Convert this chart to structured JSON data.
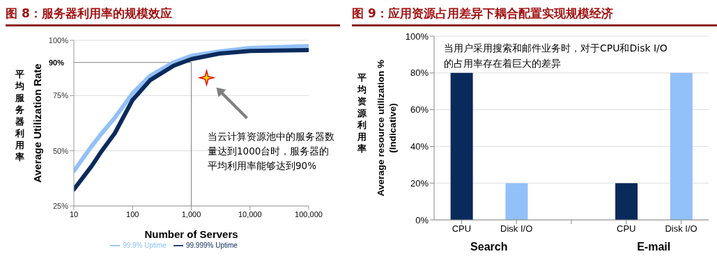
{
  "chart_data": [
    {
      "type": "line",
      "title": "图 8：服务器利用率的规模效应",
      "xlabel": "Number of Servers",
      "ylabel": "Average Utilization Rate",
      "annotations": [
        "平均服务器利用率",
        "当云计算资源池中的服务器数量达到1000台时，服务器的平均利用率能够达到90%"
      ],
      "x": [
        10,
        20,
        30,
        50,
        100,
        200,
        500,
        1000,
        3000,
        10000,
        100000
      ],
      "series": [
        {
          "name": "99.9% Uptime",
          "color": "#92c0f8",
          "values": [
            40.8,
            52,
            58,
            65,
            76,
            84,
            90,
            93,
            95,
            96.5,
            97.4
          ]
        },
        {
          "name": "99.999% Uptime",
          "color": "#0b2a5c",
          "values": [
            32.5,
            43,
            50,
            58,
            73,
            82,
            88.5,
            91.5,
            94,
            95.2,
            95.6
          ]
        }
      ],
      "xlim": [
        10,
        100000
      ],
      "xticks": [
        10,
        100,
        {
          "value": 1000,
          "label": "1,000"
        },
        {
          "value": 10000,
          "label": "10,000"
        },
        {
          "value": 100000,
          "label": "100,000"
        }
      ],
      "log": "x",
      "ylim": [
        25,
        100
      ],
      "yticks": [
        {
          "value": 25,
          "label": "25%"
        },
        {
          "value": 50,
          "label": "50%"
        },
        {
          "value": 75,
          "label": "75%"
        },
        {
          "value": 100,
          "label": "100%"
        }
      ],
      "grid": "y",
      "legend": "bottom",
      "ref_lines": [
        {
          "axis": "y",
          "value": 90,
          "label": "90%",
          "color": "#808080"
        },
        {
          "axis": "x",
          "value": 1000,
          "color": "#808080"
        }
      ]
    },
    {
      "type": "bar",
      "title": "图 9：应用资源占用差异下耦合配置实现规模经济",
      "ylabel": "Average resource utilization %\n(Indicative)",
      "annotations": [
        "平均资源利用率",
        "当用户采用搜索和邮件业务时，对于CPU和Disk I/O的占用率存在着巨大的差异",
        "Search",
        "E-mail"
      ],
      "categories": [
        "CPU",
        "Disk I/O",
        null,
        "CPU",
        "Disk I/O"
      ],
      "values": [
        80,
        20,
        null,
        20,
        80
      ],
      "colors": [
        "#0b2a5c",
        "#92c0f8",
        "#92c0f8",
        "#0b2a5c",
        "#92c0f8"
      ],
      "ylim": [
        0,
        100
      ],
      "yticks": [
        {
          "value": 0,
          "label": "0%"
        },
        {
          "value": 20,
          "label": "20%"
        },
        {
          "value": 40,
          "label": "40%"
        },
        {
          "value": 60,
          "label": "60%"
        },
        {
          "value": 80,
          "label": "80%"
        },
        {
          "value": 100,
          "label": "100%"
        }
      ],
      "grid": "y"
    }
  ]
}
